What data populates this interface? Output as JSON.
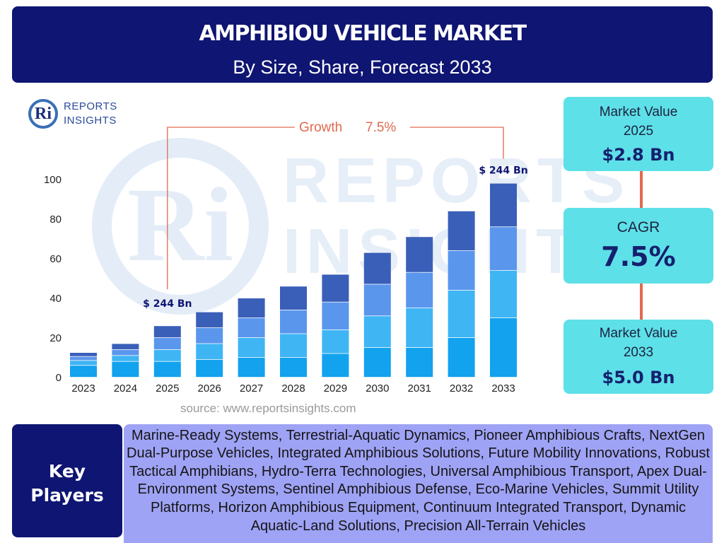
{
  "header": {
    "title": "AMPHIBIOU VEHICLE MARKET",
    "subtitle": "By Size, Share, Forecast 2033",
    "bg_color": "#0f1572"
  },
  "logo": {
    "mark": "Ri",
    "line1": "REPORTS",
    "line2": "INSIGHTS"
  },
  "watermark": {
    "mark": "Ri",
    "line1": "REPORTS",
    "line2": "INSIGHTS"
  },
  "chart_data": {
    "type": "bar",
    "stacked": true,
    "categories": [
      "2023",
      "2024",
      "2025",
      "2026",
      "2027",
      "2028",
      "2029",
      "2030",
      "2031",
      "2032",
      "2033"
    ],
    "series": [
      {
        "values": [
          6,
          8,
          8,
          9,
          10,
          10,
          12,
          15,
          15,
          20,
          30
        ],
        "color": "#12a2ee"
      },
      {
        "values": [
          2.5,
          3,
          6,
          8,
          10,
          12,
          12,
          16,
          20,
          24,
          24
        ],
        "color": "#3fb5f4"
      },
      {
        "values": [
          2,
          3,
          6,
          8,
          10,
          12,
          14,
          16,
          18,
          20,
          22
        ],
        "color": "#5a96ec"
      },
      {
        "values": [
          2,
          3,
          6,
          8,
          10,
          12,
          14,
          16,
          18,
          20,
          22
        ],
        "color": "#3a5fb8"
      }
    ],
    "ylim": [
      0,
      100
    ],
    "yticks": [
      0,
      20,
      40,
      60,
      80,
      100
    ],
    "annotations": {
      "growth_label": "Growth",
      "growth_value": "7.5%",
      "start_label": "$ 244 Bn",
      "end_label": "$ 244 Bn",
      "line_color": "#e06a4f"
    },
    "grid": false,
    "legend": "none"
  },
  "source": "source: www.reportsinsights.com",
  "cards": {
    "market_value_2025": {
      "label": "Market Value 2025",
      "value": "$2.8 Bn"
    },
    "cagr": {
      "label": "CAGR",
      "value": "7.5%"
    },
    "market_value_2033": {
      "label": "Market Value 2033",
      "value": "$5.0 Bn"
    },
    "card_color": "#5ee0e8"
  },
  "key_players": {
    "heading": [
      "Key",
      "Players"
    ],
    "text": "Global Amphibious Technologies, Advanced Mobility Solutions, Water-Land Vehicles Inc., Marine-Ready Systems, Terrestrial-Aquatic Dynamics, Pioneer Amphibious Crafts, NextGen Dual-Purpose Vehicles, Integrated Amphibious Solutions, Future Mobility Innovations, Robust Tactical Amphibians, Hydro-Terra Technologies, Universal Amphibious Transport, Apex Dual-Environment Systems, Sentinel Amphibious Defense, Eco-Marine Vehicles, Summit Utility Platforms, Horizon Amphibious Equipment, Continuum Integrated Transport, Dynamic Aquatic-Land Solutions, Precision All-Terrain Vehicles"
  }
}
